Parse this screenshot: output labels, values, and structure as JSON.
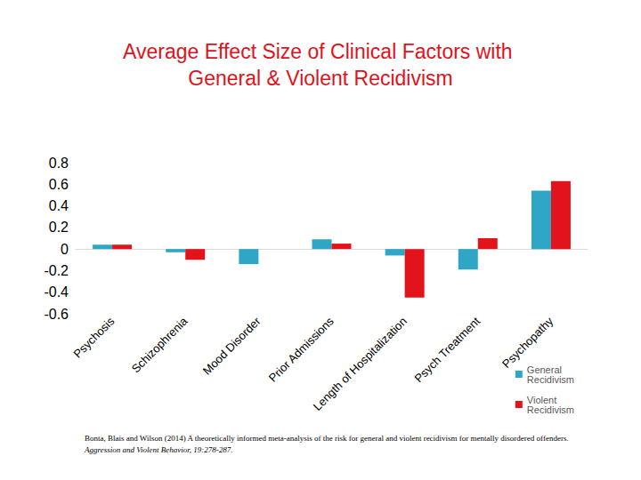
{
  "chart_data": {
    "type": "bar",
    "title": "Average Effect Size of Clinical Factors with General & Violent Recidivism",
    "categories": [
      "Psychosis",
      "Schizophrenia",
      "Mood Disorder",
      "Prior Admissions",
      "Length of Hospitalization",
      "Psych Treatment",
      "Psychopathy"
    ],
    "series": [
      {
        "name": "General Recidivism",
        "color": "#2fa6c6",
        "values": [
          0.04,
          -0.03,
          -0.14,
          0.09,
          -0.06,
          -0.19,
          0.54
        ]
      },
      {
        "name": "Violent Recidivism",
        "color": "#e3131b",
        "values": [
          0.04,
          -0.1,
          null,
          0.05,
          -0.45,
          0.1,
          0.63
        ]
      }
    ],
    "ylim": [
      -0.6,
      0.8
    ],
    "yticks": [
      -0.6,
      -0.4,
      -0.2,
      0,
      0.2,
      0.4,
      0.6,
      0.8
    ],
    "grid": false,
    "legend": "lower right",
    "annotations": [
      "Bonta, Blais and Wilson (2014) A theoretically informed meta-analysis of the risk for general and violent recidivism for mentally disordered offenders.",
      "Aggression and Violent Behavior, 19:278-287."
    ]
  }
}
